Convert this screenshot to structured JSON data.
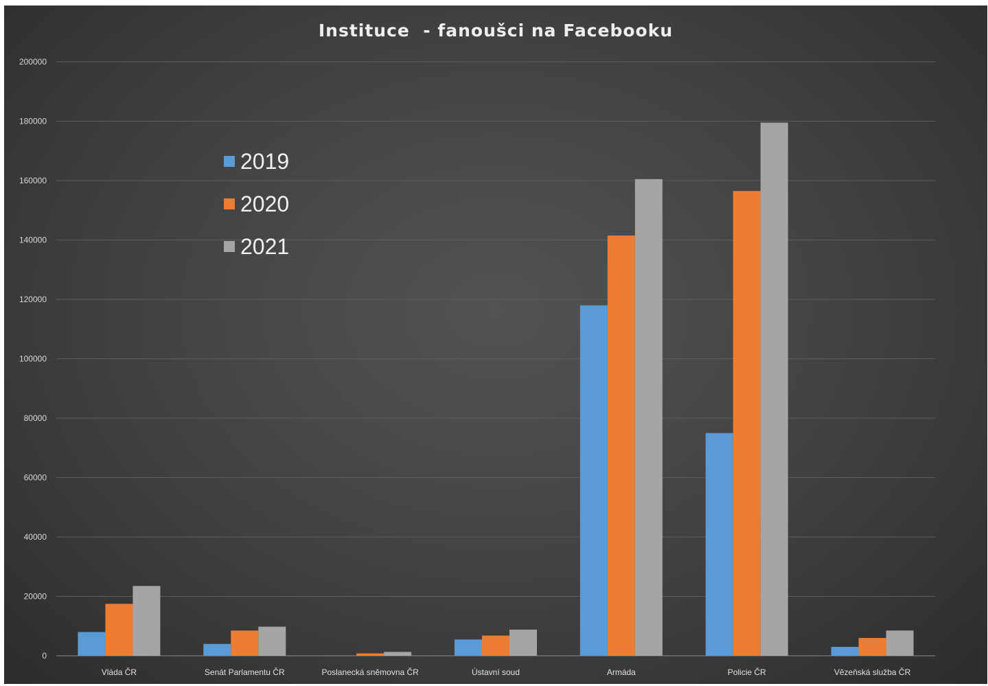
{
  "chart_data": {
    "type": "bar",
    "title": "Instituce  - fanoušci na Facebooku",
    "xlabel": "",
    "ylabel": "",
    "ylim": [
      0,
      200000
    ],
    "yticks": [
      0,
      20000,
      40000,
      60000,
      80000,
      100000,
      120000,
      140000,
      160000,
      180000,
      200000
    ],
    "grid": true,
    "legend_position": "upper-left",
    "categories": [
      "Vláda ČR",
      "Senát Parlamentu ČR",
      "Poslanecká sněmovna ČR",
      "Ústavní soud",
      "Armáda",
      "Policie ČR",
      "Vězeňská služba ČR"
    ],
    "series": [
      {
        "name": "2019",
        "color": "#5b9bd5",
        "values": [
          8000,
          4000,
          0,
          5500,
          118000,
          75000,
          3000
        ]
      },
      {
        "name": "2020",
        "color": "#ed7d31",
        "values": [
          17500,
          8500,
          800,
          6800,
          141500,
          156500,
          6000
        ]
      },
      {
        "name": "2021",
        "color": "#a5a5a5",
        "values": [
          23500,
          9800,
          1300,
          8800,
          160500,
          179500,
          8500
        ]
      }
    ]
  }
}
